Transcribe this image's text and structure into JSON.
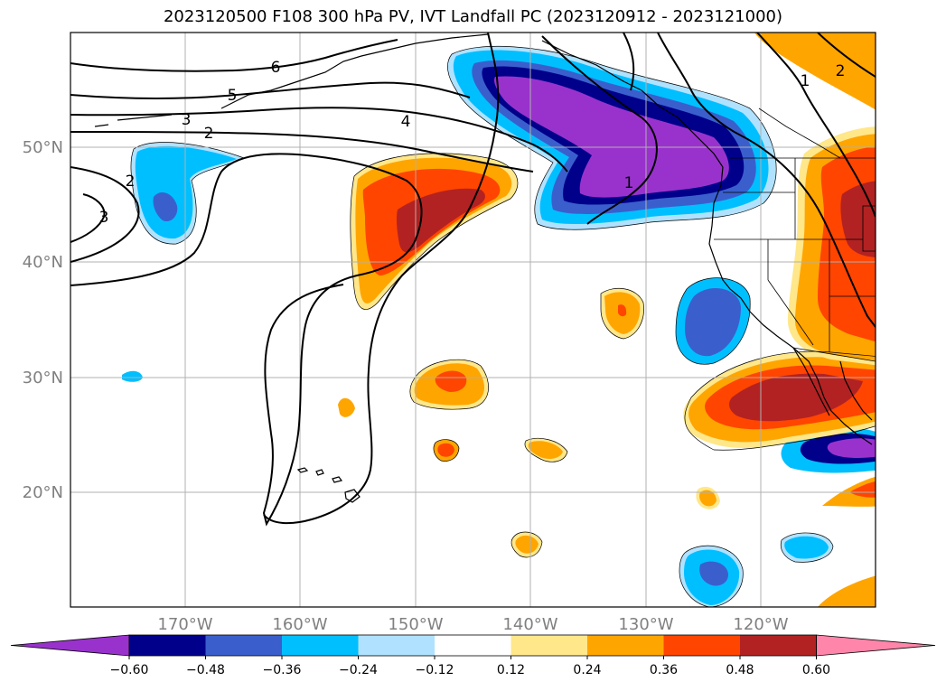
{
  "title": "2023120500 F108 300 hPa PV, IVT Landfall PC (2023120912 - 2023121000)",
  "map": {
    "lat_labels": [
      "50°N",
      "40°N",
      "30°N",
      "20°N"
    ],
    "lon_labels": [
      "170°W",
      "160°W",
      "150°W",
      "140°W",
      "130°W",
      "120°W"
    ],
    "contour_labels": [
      "6",
      "5",
      "4",
      "3",
      "2",
      "2",
      "3",
      "1",
      "1",
      "2"
    ]
  },
  "colorbar": {
    "ticks": [
      "−0.60",
      "−0.48",
      "−0.36",
      "−0.24",
      "−0.12",
      "0.12",
      "0.24",
      "0.36",
      "0.48",
      "0.60"
    ],
    "colors": [
      "#9932cc",
      "#00008b",
      "#3a5fcd",
      "#00bfff",
      "#b0e2ff",
      "#ffffff",
      "#ffe78a",
      "#ffa500",
      "#ff4500",
      "#b22222",
      "#ff85aa"
    ]
  },
  "colors": {
    "neg_dark_purple": "#9932cc",
    "neg_navy": "#00008b",
    "neg_royal": "#3a5fcd",
    "neg_sky": "#00bfff",
    "neg_light": "#b0e2ff",
    "pos_light": "#ffe78a",
    "pos_orange": "#ffa500",
    "pos_redorange": "#ff4500",
    "pos_firebrick": "#b22222",
    "pos_pink": "#ff85aa",
    "grid": "#b0b0b0"
  }
}
